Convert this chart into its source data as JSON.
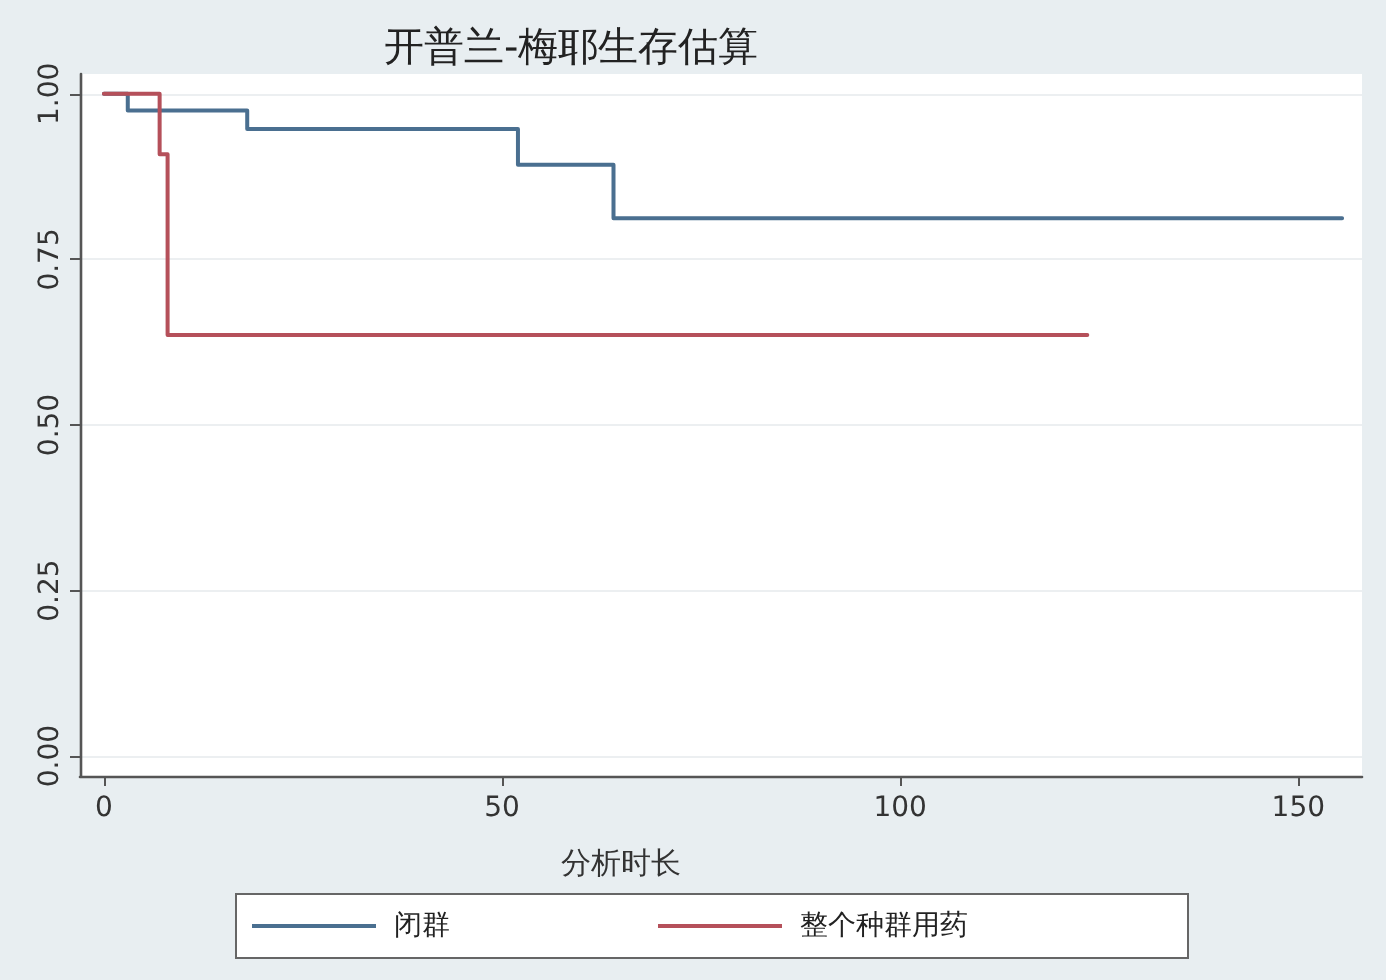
{
  "chart_data": {
    "type": "step",
    "title": "开普兰-梅耶生存估算",
    "xlabel": "分析时长",
    "series": [
      {
        "name": "闭群",
        "color": "#4a6f90",
        "x": [
          0,
          3,
          18,
          52,
          64,
          155.5
        ],
        "values": [
          1,
          0.975,
          0.947,
          0.893,
          0.812,
          0.812
        ]
      },
      {
        "name": "整个种群用药",
        "color": "#b5505a",
        "x": [
          0,
          7,
          8,
          123.5
        ],
        "values": [
          1,
          0.909,
          0.636,
          0.636
        ]
      }
    ],
    "xlim": [
      -3,
      158
    ],
    "ylim": [
      -0.03,
      1.03
    ],
    "xticks": [
      0,
      50,
      100,
      150
    ],
    "yticks": [
      {
        "value": 0,
        "label": "0.00"
      },
      {
        "value": 0.25,
        "label": "0.25"
      },
      {
        "value": 0.5,
        "label": "0.50"
      },
      {
        "value": 0.75,
        "label": "0.75"
      },
      {
        "value": 1,
        "label": "1.00"
      }
    ],
    "grid": "y",
    "legend": "bottom",
    "marker": "none",
    "line_style": "solid"
  }
}
